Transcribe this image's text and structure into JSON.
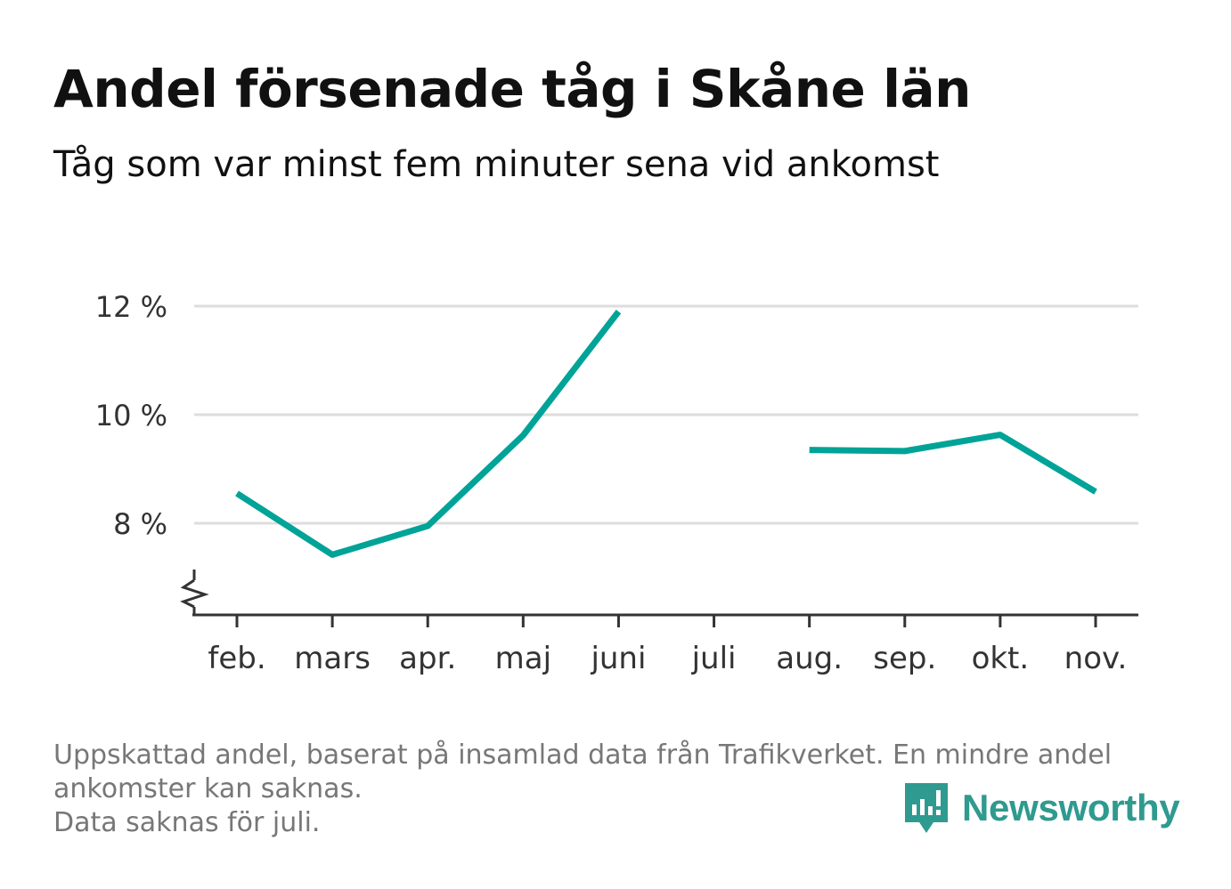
{
  "header": {
    "title": "Andel försenade tåg i Skåne län",
    "subtitle": "Tåg som var minst fem minuter sena vid ankomst"
  },
  "footnote": {
    "line1": "Uppskattad andel, baserat på insamlad data från Trafikverket. En mindre andel",
    "line2": "ankomster kan saknas.",
    "line3": "Data saknas för juli."
  },
  "logo": {
    "text": "Newsworthy",
    "icon": "bar-chart-speech-bubble-icon"
  },
  "colors": {
    "line": "#00a398",
    "grid": "#dddddd",
    "axis": "#333333",
    "logo": "#2f9a8f"
  },
  "chart_data": {
    "type": "line",
    "categories": [
      "feb.",
      "mars",
      "apr.",
      "maj",
      "juni",
      "juli",
      "aug.",
      "sep.",
      "okt.",
      "nov."
    ],
    "series": [
      {
        "values": [
          8.55,
          7.42,
          7.95,
          9.62,
          11.9,
          null,
          9.35,
          9.33,
          9.63,
          8.58
        ]
      }
    ],
    "yticks": [
      8,
      10,
      12
    ],
    "ytick_labels": [
      "8 %",
      "10 %",
      "12 %"
    ],
    "ylim": [
      6.3,
      12.3
    ],
    "axis_break": true,
    "grid": true,
    "title": "Andel försenade tåg i Skåne län",
    "xlabel": "",
    "ylabel": ""
  }
}
